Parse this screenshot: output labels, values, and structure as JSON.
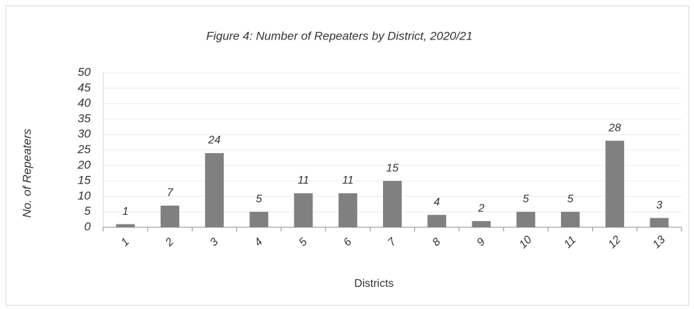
{
  "chart_data": {
    "type": "bar",
    "title": "Figure 4: Number of Repeaters by District, 2020/21",
    "x_label": "Districts",
    "y_label": "No. of Repeaters",
    "categories": [
      "1",
      "2",
      "3",
      "4",
      "5",
      "6",
      "7",
      "8",
      "9",
      "10",
      "11",
      "12",
      "13"
    ],
    "values": [
      1,
      7,
      24,
      5,
      11,
      11,
      15,
      4,
      2,
      5,
      5,
      28,
      3
    ],
    "color": "#808080",
    "ylim": [
      0,
      50
    ],
    "yticks": [
      0,
      5,
      10,
      15,
      20,
      25,
      30,
      35,
      40,
      45,
      50
    ],
    "grid": true
  }
}
